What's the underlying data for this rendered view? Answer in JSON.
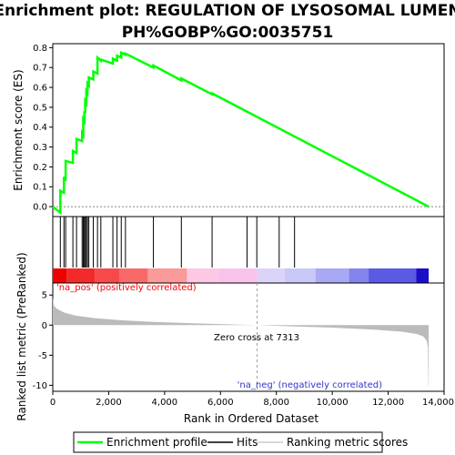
{
  "chart_data": {
    "type": "line",
    "title_line1": "Enrichment plot: REGULATION OF LYSOSOMAL LUMEN",
    "title_line2": "PH%GOBP%GO:0035751",
    "es_panel": {
      "ylabel": "Enrichment score (ES)",
      "ylim": [
        -0.05,
        0.82
      ],
      "yticks": [
        "0.0",
        "0.1",
        "0.2",
        "0.3",
        "0.4",
        "0.5",
        "0.6",
        "0.7",
        "0.8"
      ],
      "ytick_values": [
        0.0,
        0.1,
        0.2,
        0.3,
        0.4,
        0.5,
        0.6,
        0.7,
        0.8
      ],
      "series": [
        {
          "name": "Enrichment profile",
          "color": "#00ff00",
          "x": [
            0,
            270,
            270,
            400,
            400,
            460,
            460,
            720,
            720,
            850,
            850,
            1050,
            1050,
            1090,
            1090,
            1130,
            1130,
            1160,
            1160,
            1200,
            1200,
            1240,
            1240,
            1290,
            1290,
            1450,
            1450,
            1600,
            1600,
            1720,
            1720,
            2150,
            2150,
            2300,
            2300,
            2450,
            2450,
            2600,
            2600,
            3600,
            3600,
            4600,
            4600,
            5700,
            5700,
            13450
          ],
          "y": [
            0.0,
            -0.03,
            0.08,
            0.07,
            0.15,
            0.13,
            0.23,
            0.22,
            0.28,
            0.27,
            0.34,
            0.33,
            0.37,
            0.36,
            0.44,
            0.43,
            0.48,
            0.47,
            0.53,
            0.52,
            0.58,
            0.57,
            0.62,
            0.61,
            0.65,
            0.64,
            0.68,
            0.67,
            0.75,
            0.735,
            0.74,
            0.72,
            0.745,
            0.735,
            0.76,
            0.75,
            0.775,
            0.765,
            0.77,
            0.7,
            0.71,
            0.635,
            0.645,
            0.565,
            0.57,
            0.0
          ]
        }
      ]
    },
    "hits": {
      "name": "Hits",
      "positions": [
        270,
        400,
        460,
        720,
        850,
        1050,
        1090,
        1130,
        1160,
        1200,
        1240,
        1290,
        1450,
        1600,
        1720,
        2150,
        2300,
        2450,
        2600,
        3600,
        4600,
        5700,
        6950,
        7300,
        8100,
        8650
      ]
    },
    "color_bar": {
      "segments": [
        {
          "start": 0,
          "end": 500,
          "color": "#ee0000"
        },
        {
          "start": 500,
          "end": 1500,
          "color": "#f22a2a"
        },
        {
          "start": 1500,
          "end": 2400,
          "color": "#f64a4a"
        },
        {
          "start": 2400,
          "end": 3400,
          "color": "#f86a6a"
        },
        {
          "start": 3400,
          "end": 4800,
          "color": "#fa9a9a"
        },
        {
          "start": 4800,
          "end": 5900,
          "color": "#fcc8e4"
        },
        {
          "start": 5900,
          "end": 7313,
          "color": "#f8c4ec"
        },
        {
          "start": 7313,
          "end": 8300,
          "color": "#dcd4f8"
        },
        {
          "start": 8300,
          "end": 9400,
          "color": "#c8c8f8"
        },
        {
          "start": 9400,
          "end": 10600,
          "color": "#a8a8f4"
        },
        {
          "start": 10600,
          "end": 11300,
          "color": "#8484ec"
        },
        {
          "start": 11300,
          "end": 13000,
          "color": "#5a5ae4"
        },
        {
          "start": 13000,
          "end": 13450,
          "color": "#1a0ec8"
        }
      ]
    },
    "metric_panel": {
      "ylabel": "Ranked list metric (PreRanked)",
      "ylim": [
        -11,
        7
      ],
      "yticks": [
        "5",
        "0",
        "-5",
        "-10"
      ],
      "ytick_values": [
        5,
        0,
        -5,
        -10
      ],
      "series": [
        {
          "name": "Ranking metric scores",
          "color": "#bbbbbb",
          "x": [
            0,
            40,
            150,
            400,
            800,
            1500,
            2500,
            3500,
            5000,
            6500,
            7313,
            8500,
            10000,
            11500,
            12500,
            13000,
            13250,
            13380,
            13420,
            13440,
            13450
          ],
          "y": [
            4.6,
            3.2,
            2.7,
            2.1,
            1.6,
            1.15,
            0.8,
            0.55,
            0.3,
            0.1,
            0.0,
            -0.2,
            -0.42,
            -0.75,
            -1.1,
            -1.45,
            -1.85,
            -2.6,
            -3.6,
            -10.2,
            -10.2
          ]
        }
      ],
      "annotations": {
        "pos_label": "'na_pos' (positively correlated)",
        "pos_color": "#ff0000",
        "neg_label": "'na_neg' (negatively correlated)",
        "neg_color": "#3333cc",
        "zero_cross_label": "Zero cross at 7313",
        "zero_cross": 7313
      }
    },
    "xaxis": {
      "xlabel": "Rank in Ordered Dataset",
      "xlim": [
        0,
        14000
      ],
      "xticks": [
        "0",
        "2,000",
        "4,000",
        "6,000",
        "8,000",
        "10,000",
        "12,000",
        "14,000"
      ],
      "xtick_values": [
        0,
        2000,
        4000,
        6000,
        8000,
        10000,
        12000,
        14000
      ]
    },
    "legend": {
      "placement": "bottom",
      "items": [
        {
          "label": "Enrichment profile",
          "color": "#00ff00",
          "kind": "line"
        },
        {
          "label": "Hits",
          "color": "#000000",
          "kind": "line"
        },
        {
          "label": "Ranking metric scores",
          "color": "#cccccc",
          "kind": "line"
        }
      ]
    }
  }
}
